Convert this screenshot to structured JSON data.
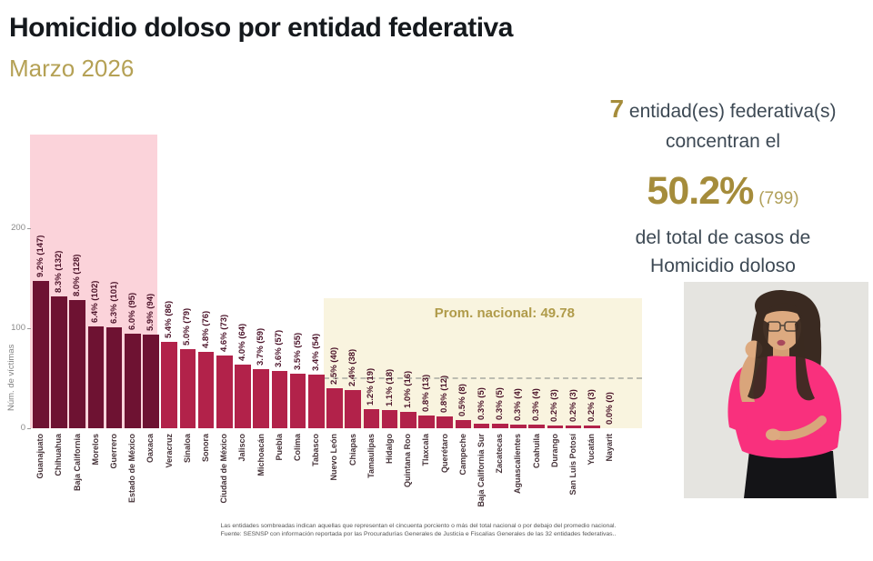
{
  "title": "Homicidio doloso por entidad federativa",
  "subtitle": "Marzo 2026",
  "summary": {
    "count": "7",
    "line1": "entidad(es) federativa(s)",
    "line2": "concentran el",
    "percent": "50.2%",
    "cases": "(799)",
    "line4": "del total de casos de",
    "line5": "Homicidio doloso"
  },
  "footnote": {
    "line1": "Las entidades sombreadas indican aquellas que representan el cincuenta porciento o más del total nacional o por debajo del promedio nacional.",
    "line2": "Fuente: SESNSP con información reportada por las Procuradurías Generales de Justicia e Fiscalías Generales de las 32 entidades federativas.."
  },
  "colors": {
    "bar_highlight": "#6e1232",
    "bar_normal": "#b2224a",
    "band_top50": "#fbd3da",
    "band_below_avg": "#f9f4df",
    "accent_gold": "#a58c3b",
    "title_text": "#15191d",
    "body_text": "#3d4954",
    "value_label_text": "#4a1228",
    "axis_text": "#8a8a8a",
    "interpreter_pink": "#f9307d"
  },
  "chart_data": {
    "type": "bar",
    "title": "Homicidio doloso por entidad federativa",
    "subtitle": "Marzo 2026",
    "xlabel": "",
    "ylabel": "Núm. de víctimas",
    "ylim": [
      0,
      200
    ],
    "yticks": [
      0,
      100,
      200
    ],
    "grid": false,
    "national_average": 49.78,
    "average_label": "Prom. nacional: 49.78",
    "top50_highlight_count": 7,
    "top50_total_cases": 799,
    "top50_percent": "50.2%",
    "below_average_start_index": 16,
    "categories": [
      "Guanajuato",
      "Chihuahua",
      "Baja California",
      "Morelos",
      "Guerrero",
      "Estado de México",
      "Oaxaca",
      "Veracruz",
      "Sinaloa",
      "Sonora",
      "Ciudad de México",
      "Jalisco",
      "Michoacán",
      "Puebla",
      "Colima",
      "Tabasco",
      "Nuevo León",
      "Chiapas",
      "Tamaulipas",
      "Hidalgo",
      "Quintana Roo",
      "Tlaxcala",
      "Querétaro",
      "Campeche",
      "Baja California Sur",
      "Zacatecas",
      "Aguascalientes",
      "Coahuila",
      "Durango",
      "San Luis Potosí",
      "Yucatán",
      "Nayarit"
    ],
    "values": [
      147,
      132,
      128,
      102,
      101,
      95,
      94,
      86,
      79,
      76,
      73,
      64,
      59,
      57,
      55,
      54,
      40,
      38,
      19,
      18,
      16,
      13,
      12,
      8,
      5,
      5,
      4,
      4,
      3,
      3,
      3,
      0
    ],
    "percent_labels": [
      "9.2%",
      "8.3%",
      "8.0%",
      "6.4%",
      "6.3%",
      "6.0%",
      "5.9%",
      "5.4%",
      "5.0%",
      "4.8%",
      "4.6%",
      "4.0%",
      "3.7%",
      "3.6%",
      "3.5%",
      "3.4%",
      "2.5%",
      "2.4%",
      "1.2%",
      "1.1%",
      "1.0%",
      "0.8%",
      "0.8%",
      "0.5%",
      "0.3%",
      "0.3%",
      "0.3%",
      "0.3%",
      "0.2%",
      "0.2%",
      "0.2%",
      "0.0%"
    ]
  }
}
